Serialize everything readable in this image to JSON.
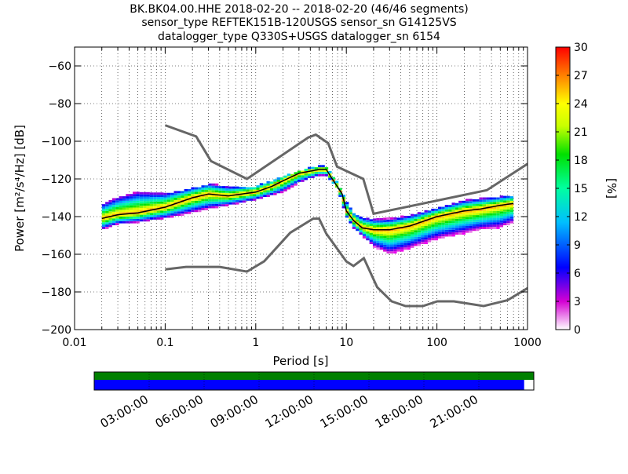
{
  "title_lines": [
    "BK.BK04.00.HHE   2018-02-20 -- 2018-02-20  (46/46 segments)",
    "sensor_type REFTEK151B-120USGS sensor_sn G14125VS",
    "datalogger_type Q330S+USGS datalogger_sn 6154"
  ],
  "colors": {
    "noise_model": "#666666",
    "mode_line": "#000000",
    "grid": "#000000",
    "coverage_green": "#008000",
    "coverage_blue": "#0000ff"
  },
  "chart_data": {
    "type": "heatmap",
    "xlabel": "Period [s]",
    "ylabel": "Power [m²/s⁴/Hz] [dB]",
    "x_scale": "log",
    "xlim": [
      0.01,
      1000
    ],
    "ylim": [
      -200,
      -50
    ],
    "x_ticks": [
      0.01,
      0.1,
      1,
      10,
      100,
      1000
    ],
    "x_tick_labels": [
      "0.01",
      "0.1",
      "1",
      "10",
      "100",
      "1000"
    ],
    "y_ticks": [
      -200,
      -180,
      -160,
      -140,
      -120,
      -100,
      -80,
      -60
    ],
    "y_tick_labels": [
      "−200",
      "−180",
      "−160",
      "−140",
      "−120",
      "−100",
      "−80",
      "−60"
    ],
    "grid": true,
    "colorbar": {
      "label": "[%]",
      "range": [
        0,
        30
      ],
      "ticks": [
        0,
        3,
        6,
        9,
        12,
        15,
        18,
        21,
        24,
        27,
        30
      ],
      "tick_labels": [
        "0",
        "3",
        "6",
        "9",
        "12",
        "15",
        "18",
        "21",
        "24",
        "27",
        "30"
      ]
    },
    "mode_curve": [
      [
        0.02,
        -141
      ],
      [
        0.03,
        -139
      ],
      [
        0.05,
        -138
      ],
      [
        0.1,
        -135
      ],
      [
        0.2,
        -130
      ],
      [
        0.3,
        -128
      ],
      [
        0.5,
        -129
      ],
      [
        1,
        -127
      ],
      [
        1.5,
        -124
      ],
      [
        2,
        -121
      ],
      [
        3,
        -117
      ],
      [
        5,
        -115
      ],
      [
        6,
        -115
      ],
      [
        7,
        -120
      ],
      [
        9,
        -128
      ],
      [
        10,
        -137
      ],
      [
        12,
        -142
      ],
      [
        15,
        -146
      ],
      [
        20,
        -147
      ],
      [
        30,
        -147
      ],
      [
        50,
        -145
      ],
      [
        100,
        -140
      ],
      [
        200,
        -137
      ],
      [
        300,
        -136
      ],
      [
        500,
        -134
      ],
      [
        700,
        -133
      ]
    ],
    "psd_envelope": {
      "upper": [
        [
          0.02,
          -133
        ],
        [
          0.03,
          -129
        ],
        [
          0.05,
          -126
        ],
        [
          0.1,
          -127
        ],
        [
          0.2,
          -124
        ],
        [
          0.3,
          -122
        ],
        [
          0.5,
          -124
        ],
        [
          1,
          -123
        ],
        [
          2,
          -118
        ],
        [
          3,
          -115
        ],
        [
          5,
          -113
        ],
        [
          6,
          -113
        ],
        [
          8,
          -121
        ],
        [
          10,
          -131
        ],
        [
          12,
          -137
        ],
        [
          15,
          -140
        ],
        [
          20,
          -141
        ],
        [
          30,
          -141
        ],
        [
          50,
          -139
        ],
        [
          100,
          -135
        ],
        [
          200,
          -131
        ],
        [
          300,
          -130
        ],
        [
          500,
          -129
        ],
        [
          700,
          -128
        ]
      ],
      "lower": [
        [
          0.02,
          -147
        ],
        [
          0.03,
          -144
        ],
        [
          0.05,
          -143
        ],
        [
          0.1,
          -141
        ],
        [
          0.2,
          -138
        ],
        [
          0.3,
          -136
        ],
        [
          0.5,
          -134
        ],
        [
          1,
          -131
        ],
        [
          2,
          -127
        ],
        [
          3,
          -122
        ],
        [
          5,
          -118
        ],
        [
          6,
          -118
        ],
        [
          8,
          -125
        ],
        [
          10,
          -140
        ],
        [
          12,
          -146
        ],
        [
          15,
          -150
        ],
        [
          20,
          -156
        ],
        [
          30,
          -160
        ],
        [
          50,
          -157
        ],
        [
          100,
          -152
        ],
        [
          200,
          -149
        ],
        [
          300,
          -147
        ],
        [
          500,
          -146
        ],
        [
          700,
          -143
        ]
      ]
    },
    "high_noise_model": [
      [
        0.1,
        -91.5
      ],
      [
        0.22,
        -97.4
      ],
      [
        0.32,
        -110.5
      ],
      [
        0.8,
        -120
      ],
      [
        3.8,
        -98
      ],
      [
        4.6,
        -96.5
      ],
      [
        6.3,
        -101
      ],
      [
        7.9,
        -113.5
      ],
      [
        15.4,
        -120
      ],
      [
        20,
        -138.5
      ],
      [
        354.8,
        -126
      ],
      [
        1000,
        -112
      ]
    ],
    "low_noise_model": [
      [
        0.1,
        -168
      ],
      [
        0.17,
        -166.7
      ],
      [
        0.4,
        -166.7
      ],
      [
        0.8,
        -169.2
      ],
      [
        1.24,
        -163.7
      ],
      [
        2.4,
        -148.6
      ],
      [
        4.3,
        -141.1
      ],
      [
        5,
        -141.1
      ],
      [
        6,
        -149
      ],
      [
        10,
        -163.8
      ],
      [
        12,
        -166.2
      ],
      [
        15.6,
        -162.1
      ],
      [
        21.9,
        -177.5
      ],
      [
        31.6,
        -185
      ],
      [
        45,
        -187.5
      ],
      [
        70,
        -187.5
      ],
      [
        101,
        -185
      ],
      [
        154,
        -185
      ],
      [
        328,
        -187.5
      ],
      [
        600,
        -184.4
      ],
      [
        1000,
        -178
      ]
    ],
    "time_axis": {
      "tick_labels": [
        "03:00:00",
        "06:00:00",
        "09:00:00",
        "12:00:00",
        "15:00:00",
        "18:00:00",
        "21:00:00"
      ],
      "coverage_fraction_blue": 0.978,
      "coverage_fraction_green": 1.0
    }
  }
}
